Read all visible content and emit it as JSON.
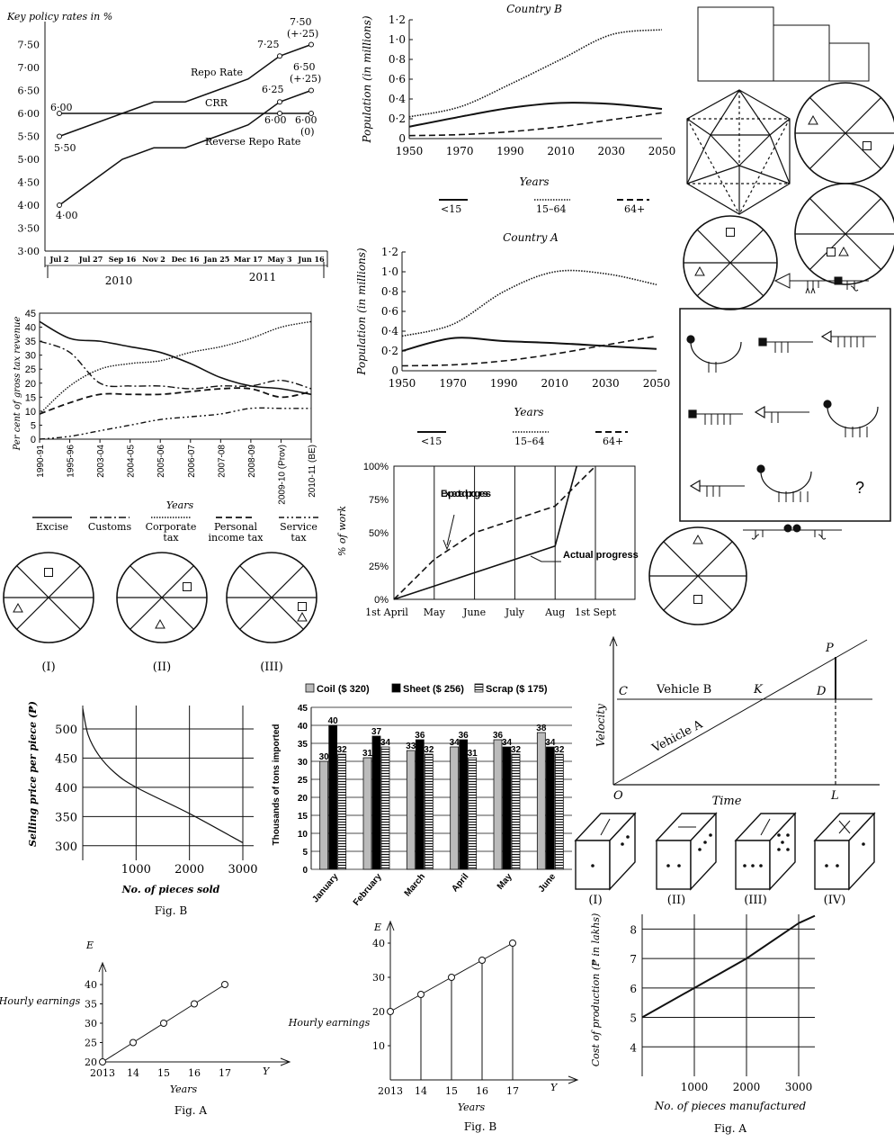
{
  "chart_data": [
    {
      "id": "policy_rates",
      "type": "line",
      "title": "Key policy rates in %",
      "categories": [
        "Jul 2",
        "Jul 27",
        "Sep 16",
        "Nov 2",
        "Dec 16",
        "Jan 25",
        "Mar 17",
        "May 3",
        "Jun 16"
      ],
      "year_labels": [
        "2010",
        "2011"
      ],
      "ylim": [
        3.0,
        8.0
      ],
      "yticks": [
        "3·00",
        "3·50",
        "4·00",
        "4·50",
        "5·00",
        "5·50",
        "6·00",
        "6·50",
        "7·00",
        "7·50"
      ],
      "series": [
        {
          "name": "Repo Rate",
          "values": [
            5.5,
            5.75,
            6.0,
            6.25,
            6.25,
            6.5,
            6.75,
            7.25,
            7.5
          ]
        },
        {
          "name": "CRR",
          "values": [
            6.0,
            6.0,
            6.0,
            6.0,
            6.0,
            6.0,
            6.0,
            6.0,
            6.0
          ]
        },
        {
          "name": "Reverse Repo Rate",
          "values": [
            4.0,
            4.5,
            5.0,
            5.25,
            5.25,
            5.5,
            5.75,
            6.25,
            6.5
          ]
        }
      ],
      "annotations": [
        "6·00",
        "5·50",
        "4·00",
        "7·25",
        "7·50",
        "(+·25)",
        "6·25",
        "6·50",
        "(+·25)",
        "6·00",
        "6·00",
        "(0)"
      ]
    },
    {
      "id": "country_b",
      "type": "line",
      "title": "Country B",
      "xlabel": "Years",
      "ylabel": "Population (in millions)",
      "x": [
        1950,
        1970,
        1990,
        2010,
        2030,
        2050
      ],
      "ylim": [
        0,
        1.2
      ],
      "yticks": [
        "0",
        "0·2",
        "0·4",
        "0·6",
        "0·8",
        "1·0",
        "1·2"
      ],
      "series": [
        {
          "name": "<15",
          "values": [
            0.12,
            0.22,
            0.31,
            0.36,
            0.35,
            0.3
          ]
        },
        {
          "name": "15–64",
          "values": [
            0.22,
            0.32,
            0.55,
            0.8,
            1.05,
            1.1
          ]
        },
        {
          "name": "64+",
          "values": [
            0.03,
            0.04,
            0.07,
            0.12,
            0.19,
            0.26
          ]
        }
      ]
    },
    {
      "id": "country_a",
      "type": "line",
      "title": "Country A",
      "xlabel": "Years",
      "ylabel": "Population (in millions)",
      "x": [
        1950,
        1970,
        1990,
        2010,
        2030,
        2050
      ],
      "ylim": [
        0,
        1.2
      ],
      "yticks": [
        "0",
        "0·2",
        "0·4",
        "0·6",
        "0·8",
        "1·0",
        "1·2"
      ],
      "series": [
        {
          "name": "<15",
          "values": [
            0.2,
            0.33,
            0.3,
            0.28,
            0.25,
            0.22
          ]
        },
        {
          "name": "15–64",
          "values": [
            0.35,
            0.47,
            0.8,
            1.0,
            0.98,
            0.87
          ]
        },
        {
          "name": "64+",
          "values": [
            0.05,
            0.06,
            0.1,
            0.17,
            0.26,
            0.35
          ]
        }
      ]
    },
    {
      "id": "tax_revenue",
      "type": "line",
      "xlabel": "Years",
      "ylabel": "Per cent of gross tax revenue",
      "categories": [
        "1990-91",
        "1995-96",
        "2003-04",
        "2004-05",
        "2005-06",
        "2006-07",
        "2007-08",
        "2008-09",
        "2009-10 (Prov)",
        "2010-11 (BE)"
      ],
      "ylim": [
        0,
        45
      ],
      "yticks": [
        "0",
        "5",
        "10",
        "15",
        "20",
        "25",
        "30",
        "35",
        "40",
        "45"
      ],
      "series": [
        {
          "name": "Excise",
          "values": [
            42,
            36,
            35,
            33,
            31,
            27,
            22,
            19,
            18,
            16
          ]
        },
        {
          "name": "Customs",
          "values": [
            35,
            31,
            20,
            19,
            19,
            18,
            19,
            19,
            21,
            18
          ]
        },
        {
          "name": "Corporate tax",
          "values": [
            9,
            19,
            25,
            27,
            28,
            31,
            33,
            36,
            40,
            42
          ]
        },
        {
          "name": "Personal income tax",
          "values": [
            9,
            13,
            16,
            16,
            16,
            17,
            18,
            18,
            15,
            17
          ]
        },
        {
          "name": "Service tax",
          "values": [
            0,
            1,
            3,
            5,
            7,
            8,
            9,
            11,
            11,
            11
          ]
        }
      ]
    },
    {
      "id": "work_progress",
      "type": "line",
      "ylabel": "% of work",
      "categories": [
        "1st April",
        "May",
        "June",
        "July",
        "Aug",
        "1st Sept"
      ],
      "yticks": [
        "0%",
        "25%",
        "50%",
        "75%",
        "100%"
      ],
      "ylim": [
        0,
        100
      ],
      "series": [
        {
          "name": "Expected progress",
          "values": [
            0,
            30,
            50,
            60,
            70,
            100
          ]
        },
        {
          "name": "Actual progress",
          "values": [
            0,
            10,
            20,
            30,
            40,
            100
          ]
        }
      ],
      "annotations": [
        "Expected progress",
        "Actual progress"
      ]
    },
    {
      "id": "imports",
      "type": "bar",
      "ylabel": "Thousands of tons imported",
      "categories": [
        "January",
        "February",
        "March",
        "April",
        "May",
        "June"
      ],
      "ylim": [
        0,
        45
      ],
      "yticks": [
        "0",
        "5",
        "10",
        "15",
        "20",
        "25",
        "30",
        "35",
        "40",
        "45"
      ],
      "series": [
        {
          "name": "Coil ($ 320)",
          "values": [
            30,
            31,
            33,
            34,
            36,
            38
          ]
        },
        {
          "name": "Sheet ($ 256)",
          "values": [
            40,
            37,
            36,
            36,
            34,
            34
          ]
        },
        {
          "name": "Scrap ($ 175)",
          "values": [
            32,
            34,
            32,
            31,
            32,
            32
          ]
        }
      ]
    },
    {
      "id": "selling_price",
      "type": "line",
      "xlabel": "No. of pieces sold",
      "ylabel": "Selling price per piece (₱)",
      "caption": "Fig. B",
      "xticks": [
        "1000",
        "2000",
        "3000"
      ],
      "yticks": [
        "300",
        "350",
        "400",
        "450",
        "500"
      ],
      "x": [
        0,
        100,
        300,
        600,
        1000,
        2000,
        3000
      ],
      "values": [
        535,
        490,
        455,
        425,
        400,
        355,
        305
      ]
    },
    {
      "id": "velocity_time",
      "type": "line",
      "xlabel": "Time",
      "ylabel": "Velocity",
      "series": [
        {
          "name": "Vehicle B"
        },
        {
          "name": "Vehicle A"
        }
      ],
      "point_labels": [
        "C",
        "K",
        "D",
        "P",
        "O",
        "L"
      ]
    },
    {
      "id": "hourly_earnings_a",
      "type": "line",
      "xlabel": "Years",
      "ylabel": "Hourly earnings",
      "caption": "Fig. A",
      "axis_letters": [
        "E",
        "Y"
      ],
      "categories": [
        "2013",
        "14",
        "15",
        "16",
        "17"
      ],
      "values": [
        20,
        25,
        30,
        35,
        40
      ],
      "yticks": [
        "20",
        "25",
        "30",
        "35",
        "40"
      ]
    },
    {
      "id": "hourly_earnings_b",
      "type": "line",
      "xlabel": "Years",
      "ylabel": "Hourly earnings",
      "caption": "Fig. B",
      "axis_letters": [
        "E",
        "Y"
      ],
      "categories": [
        "2013",
        "14",
        "15",
        "16",
        "17"
      ],
      "values": [
        20,
        25,
        30,
        35,
        40
      ],
      "yticks": [
        "10",
        "20",
        "30",
        "40"
      ]
    },
    {
      "id": "cost_production",
      "type": "line",
      "xlabel": "No. of pieces manufactured",
      "ylabel": "Cost of production (₱ in lakhs)",
      "caption": "Fig. A",
      "x": [
        0,
        1000,
        2000,
        3000
      ],
      "values": [
        5,
        6,
        7,
        8.2
      ],
      "xticks": [
        "1000",
        "2000",
        "3000"
      ],
      "yticks": [
        "4",
        "5",
        "6",
        "7",
        "8"
      ]
    }
  ],
  "figure_labels": {
    "circles_bottom": [
      "(I)",
      "(II)",
      "(III)"
    ],
    "dice": [
      "(I)",
      "(II)",
      "(III)",
      "(IV)"
    ],
    "matrix_missing": "?"
  }
}
